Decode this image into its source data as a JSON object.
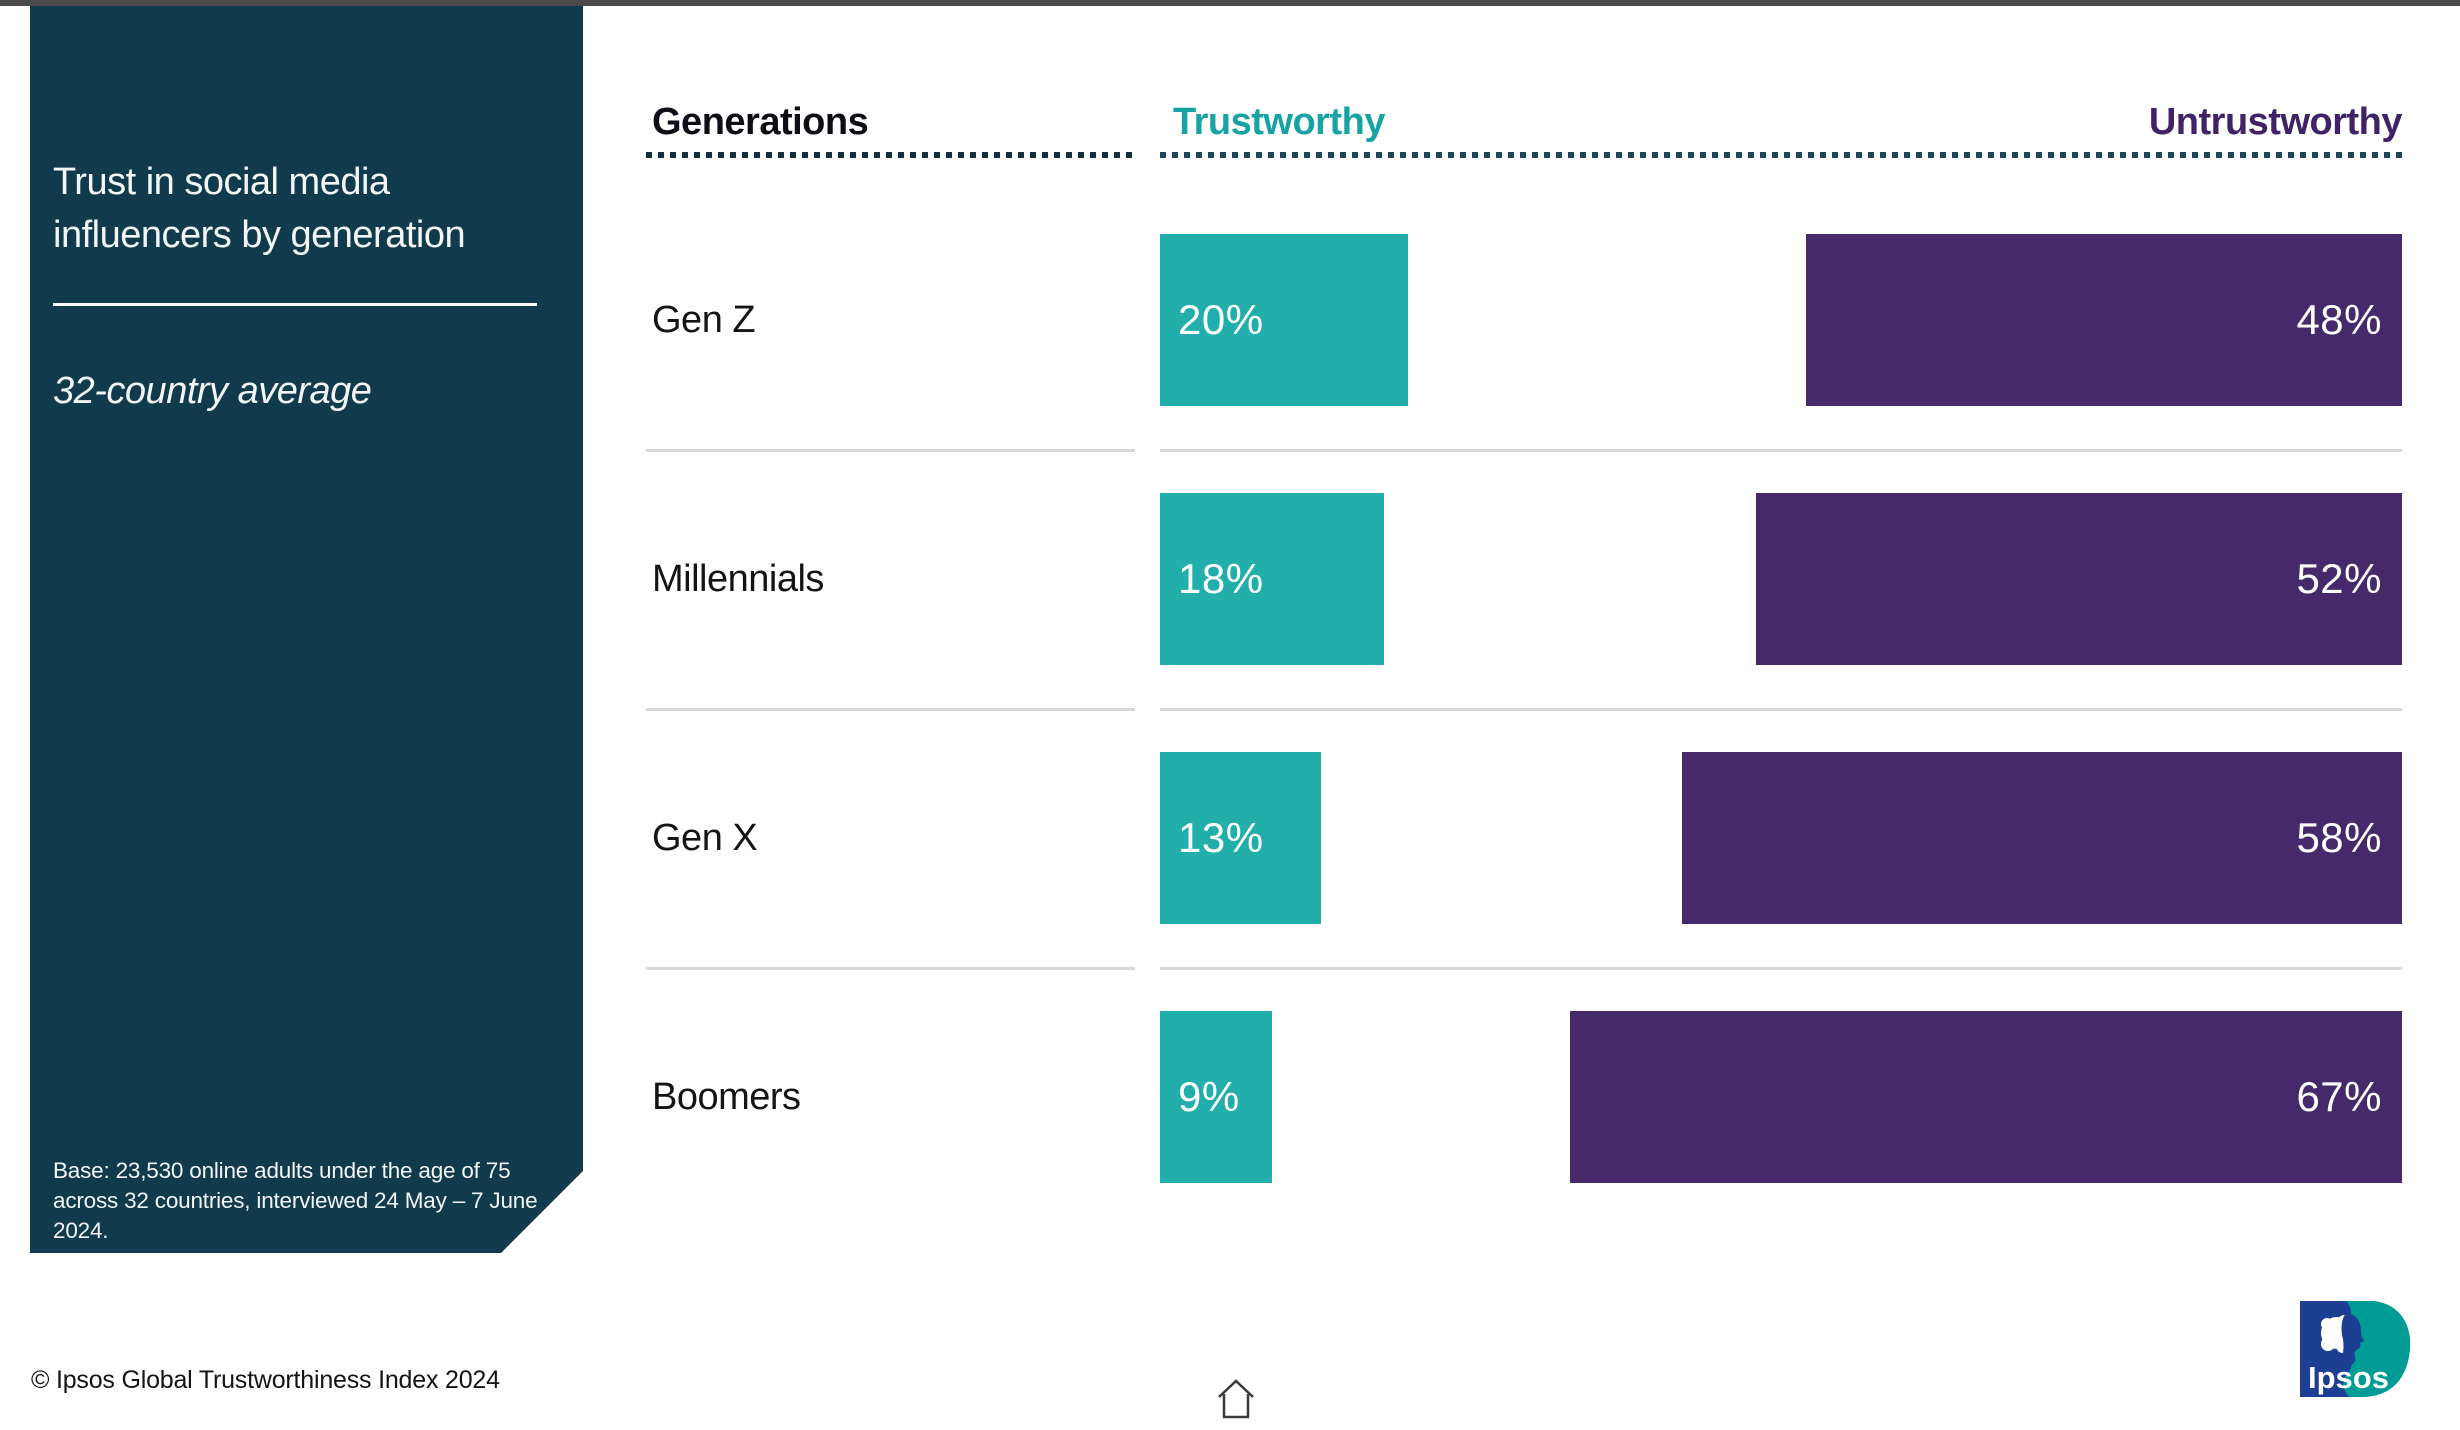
{
  "frame": {
    "topbar_color": "#4A4A4A"
  },
  "sidebar": {
    "title": "Trust in social media influencers by generation",
    "subtitle": "32-country average",
    "base_note": "Base: 23,530 online adults under the age of 75 across 32 countries, interviewed 24 May – 7 June 2024."
  },
  "chart_data": {
    "type": "bar",
    "orientation": "horizontal-paired",
    "title": "Trust in social media influencers by generation",
    "subtitle": "32-country average",
    "column_header": "Generations",
    "categories": [
      "Gen Z",
      "Millennials",
      "Gen X",
      "Boomers"
    ],
    "series": [
      {
        "name": "Trustworthy",
        "color": "#22AFAC",
        "align": "left",
        "values": [
          20,
          18,
          13,
          9
        ],
        "labels": [
          "20%",
          "18%",
          "13%",
          "9%"
        ]
      },
      {
        "name": "Untrustworthy",
        "color": "#46296B",
        "align": "right",
        "values": [
          48,
          52,
          58,
          67
        ],
        "labels": [
          "48%",
          "52%",
          "58%",
          "67%"
        ]
      }
    ],
    "value_suffix": "%",
    "xlim": [
      0,
      100
    ],
    "grid": "row-separators",
    "legend_position": "top"
  },
  "header": {
    "generations_label": "Generations",
    "trustworthy_label": "Trustworthy",
    "untrustworthy_label": "Untrustworthy"
  },
  "footer": {
    "copyright": "© Ipsos Global Trustworthiness Index 2024"
  },
  "logo": {
    "text": "Ipsos"
  },
  "colors": {
    "sidebar_bg": "#113B4D",
    "trustworthy_bar": "#22AFAC",
    "untrustworthy_bar": "#46296B",
    "trustworthy_header": "#17A3A3",
    "untrustworthy_header": "#3F2366",
    "dotted_rule": "#1E4558",
    "row_separator": "#D9D9D9",
    "topbar": "#4A4A4A",
    "logo_blue": "#1C3E93",
    "logo_teal": "#009B95"
  }
}
